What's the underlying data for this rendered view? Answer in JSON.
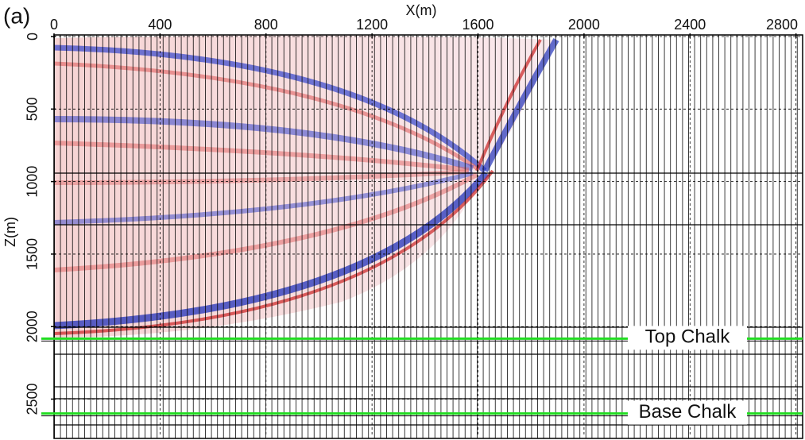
{
  "chart_data": {
    "type": "seismic-section",
    "panel_label": "(a)",
    "xlabel": "X(m)",
    "ylabel": "Z(m)",
    "xlim": [
      0,
      2825
    ],
    "xticks": [
      0,
      400,
      800,
      1200,
      1600,
      2000,
      2400,
      2800
    ],
    "ylim": [
      0,
      2760
    ],
    "yticks": [
      0,
      500,
      1000,
      1500,
      2000,
      2500
    ],
    "y_inverted": true,
    "horizons": [
      {
        "label": "Top Chalk",
        "depth": 2083,
        "color": "#22dd22"
      },
      {
        "label": "Base Chalk",
        "depth": 2599,
        "color": "#22dd22"
      }
    ]
  }
}
